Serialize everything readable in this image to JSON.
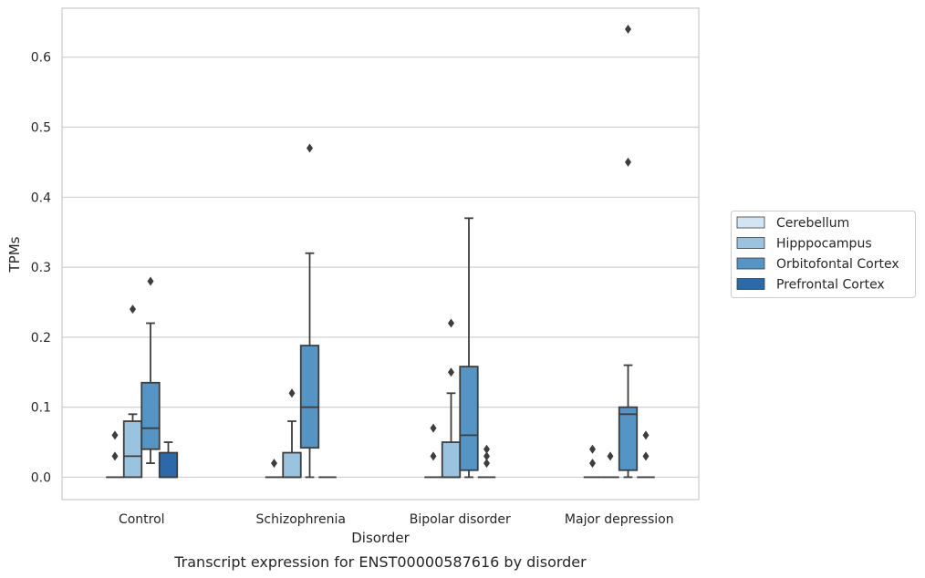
{
  "chart_data": {
    "type": "boxplot",
    "caption": "Transcript expression for ENST00000587616 by disorder",
    "xlabel": "Disorder",
    "ylabel": "TPMs",
    "ylim": [
      -0.032,
      0.67
    ],
    "yticks": [
      0.0,
      0.1,
      0.2,
      0.3,
      0.4,
      0.5,
      0.6
    ],
    "ytick_labels": [
      "0.0",
      "0.1",
      "0.2",
      "0.3",
      "0.4",
      "0.5",
      "0.6"
    ],
    "grid": "horizontal",
    "legend_position": "right",
    "categories": [
      "Control",
      "Schizophrenia",
      "Bipolar disorder",
      "Major depression"
    ],
    "series": [
      {
        "name": "Cerebellum",
        "color": "#d3e4f3",
        "boxes": [
          {
            "whislo": 0,
            "q1": 0,
            "med": 0,
            "q3": 0,
            "whishi": 0,
            "fliers": [
              0.03,
              0.06
            ]
          },
          {
            "whislo": 0,
            "q1": 0,
            "med": 0,
            "q3": 0,
            "whishi": 0,
            "fliers": [
              0.02
            ]
          },
          {
            "whislo": 0,
            "q1": 0,
            "med": 0,
            "q3": 0,
            "whishi": 0,
            "fliers": [
              0.03,
              0.07
            ]
          },
          {
            "whislo": 0,
            "q1": 0,
            "med": 0,
            "q3": 0,
            "whishi": 0,
            "fliers": [
              0.02,
              0.04
            ]
          }
        ]
      },
      {
        "name": "Hipppocampus",
        "color": "#99c3de",
        "boxes": [
          {
            "whislo": 0,
            "q1": 0,
            "med": 0.03,
            "q3": 0.08,
            "whishi": 0.09,
            "fliers": [
              0.24
            ]
          },
          {
            "whislo": 0,
            "q1": 0,
            "med": 0,
            "q3": 0.035,
            "whishi": 0.08,
            "fliers": [
              0.12
            ]
          },
          {
            "whislo": 0,
            "q1": 0,
            "med": 0,
            "q3": 0.05,
            "whishi": 0.12,
            "fliers": [
              0.15,
              0.22
            ]
          },
          {
            "whislo": 0,
            "q1": 0,
            "med": 0,
            "q3": 0,
            "whishi": 0,
            "fliers": [
              0.03
            ]
          }
        ]
      },
      {
        "name": "Orbitofontal Cortex",
        "color": "#5495c5",
        "boxes": [
          {
            "whislo": 0.02,
            "q1": 0.04,
            "med": 0.07,
            "q3": 0.135,
            "whishi": 0.22,
            "fliers": [
              0.28
            ]
          },
          {
            "whislo": 0,
            "q1": 0.042,
            "med": 0.1,
            "q3": 0.188,
            "whishi": 0.32,
            "fliers": [
              0.47
            ]
          },
          {
            "whislo": 0,
            "q1": 0.01,
            "med": 0.06,
            "q3": 0.158,
            "whishi": 0.37,
            "fliers": []
          },
          {
            "whislo": 0,
            "q1": 0.01,
            "med": 0.09,
            "q3": 0.1,
            "whishi": 0.16,
            "fliers": [
              0.45,
              0.64
            ]
          }
        ]
      },
      {
        "name": "Prefrontal Cortex",
        "color": "#2c69a8",
        "boxes": [
          {
            "whislo": 0,
            "q1": 0,
            "med": 0,
            "q3": 0.035,
            "whishi": 0.05,
            "fliers": []
          },
          {
            "whislo": 0,
            "q1": 0,
            "med": 0,
            "q3": 0,
            "whishi": 0,
            "fliers": []
          },
          {
            "whislo": 0,
            "q1": 0,
            "med": 0,
            "q3": 0,
            "whishi": 0,
            "fliers": [
              0.02,
              0.03,
              0.04
            ]
          },
          {
            "whislo": 0,
            "q1": 0,
            "med": 0,
            "q3": 0,
            "whishi": 0,
            "fliers": [
              0.03,
              0.06
            ]
          }
        ]
      }
    ]
  }
}
